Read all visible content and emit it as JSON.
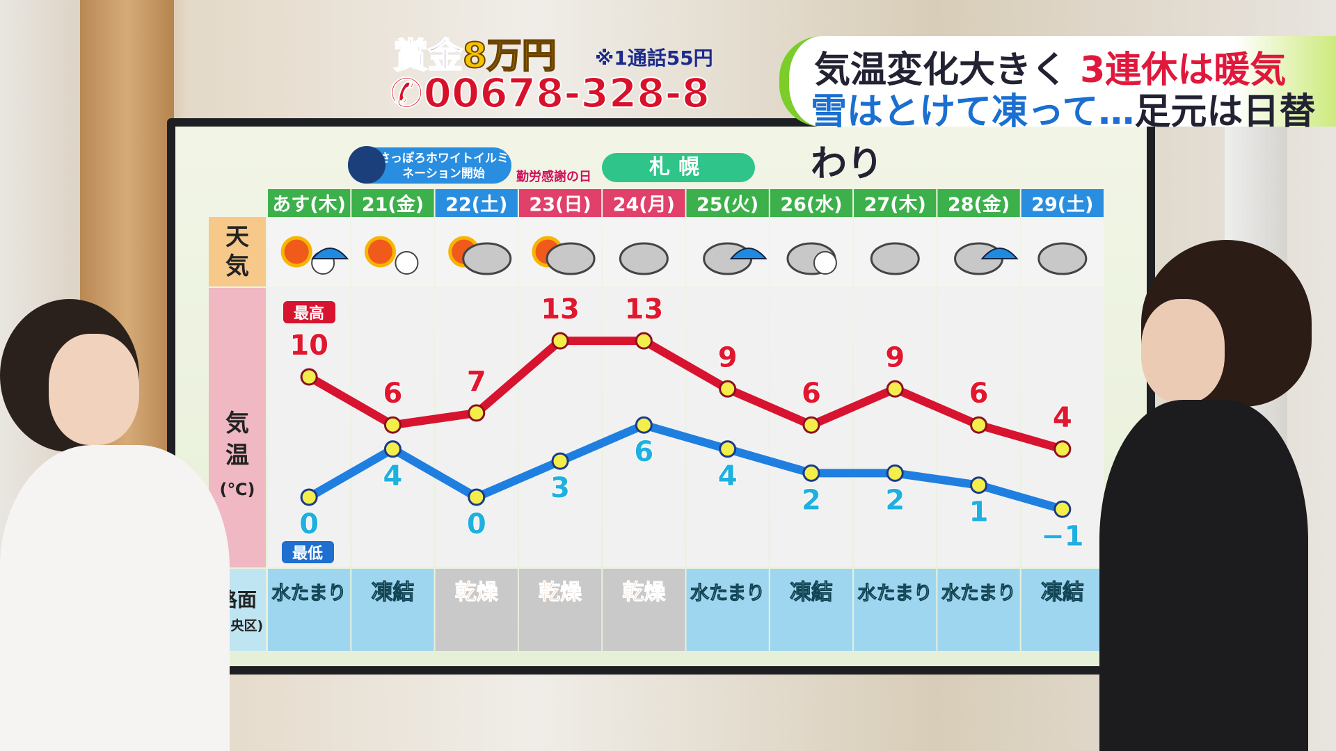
{
  "overlay": {
    "prize_label": "賞金",
    "prize_amount": "8万円",
    "call_fee": "※1通話55円",
    "phone": "00678-328-8"
  },
  "headline": {
    "line1_a": "気温変化大きく",
    "line1_b": "3連休は暖気",
    "line2_a": "雪はとけて凍って…",
    "line2_b": "足元は日替わり"
  },
  "board": {
    "location": "札幌",
    "event": "さっぽろホワイトイルミネーション開始",
    "holiday": "勤労感謝の日",
    "row_labels": {
      "weather": "天気",
      "temp": "気温",
      "temp_unit": "(℃)",
      "high": "最高",
      "low": "最低",
      "road": "路面",
      "road_sub": "(中央区)"
    }
  },
  "chart_data": {
    "type": "line",
    "categories": [
      "あす(木)",
      "21(金)",
      "22(土)",
      "23(日)",
      "24(月)",
      "25(火)",
      "26(水)",
      "27(木)",
      "28(金)",
      "29(土)"
    ],
    "header_colors": [
      "#3cb04a",
      "#3cb04a",
      "#2a8ee0",
      "#e0406a",
      "#e0406a",
      "#3cb04a",
      "#3cb04a",
      "#3cb04a",
      "#3cb04a",
      "#2a8ee0"
    ],
    "weather": [
      "sunny-then-snow-rain",
      "sunny-with-snow",
      "sunny-then-cloudy",
      "sunny-then-cloudy",
      "cloudy",
      "cloudy-with-rain",
      "cloudy-with-snow",
      "cloudy",
      "cloudy-with-rain",
      "cloudy"
    ],
    "series": [
      {
        "name": "最高",
        "color": "#d8132f",
        "values": [
          10,
          6,
          7,
          13,
          13,
          9,
          6,
          9,
          6,
          4
        ]
      },
      {
        "name": "最低",
        "color": "#1e7fe0",
        "values": [
          0,
          4,
          0,
          3,
          6,
          4,
          2,
          2,
          1,
          -1
        ]
      }
    ],
    "road": [
      "水たまり",
      "凍結",
      "乾燥",
      "乾燥",
      "乾燥",
      "水たまり",
      "凍結",
      "水たまり",
      "水たまり",
      "凍結"
    ]
  }
}
